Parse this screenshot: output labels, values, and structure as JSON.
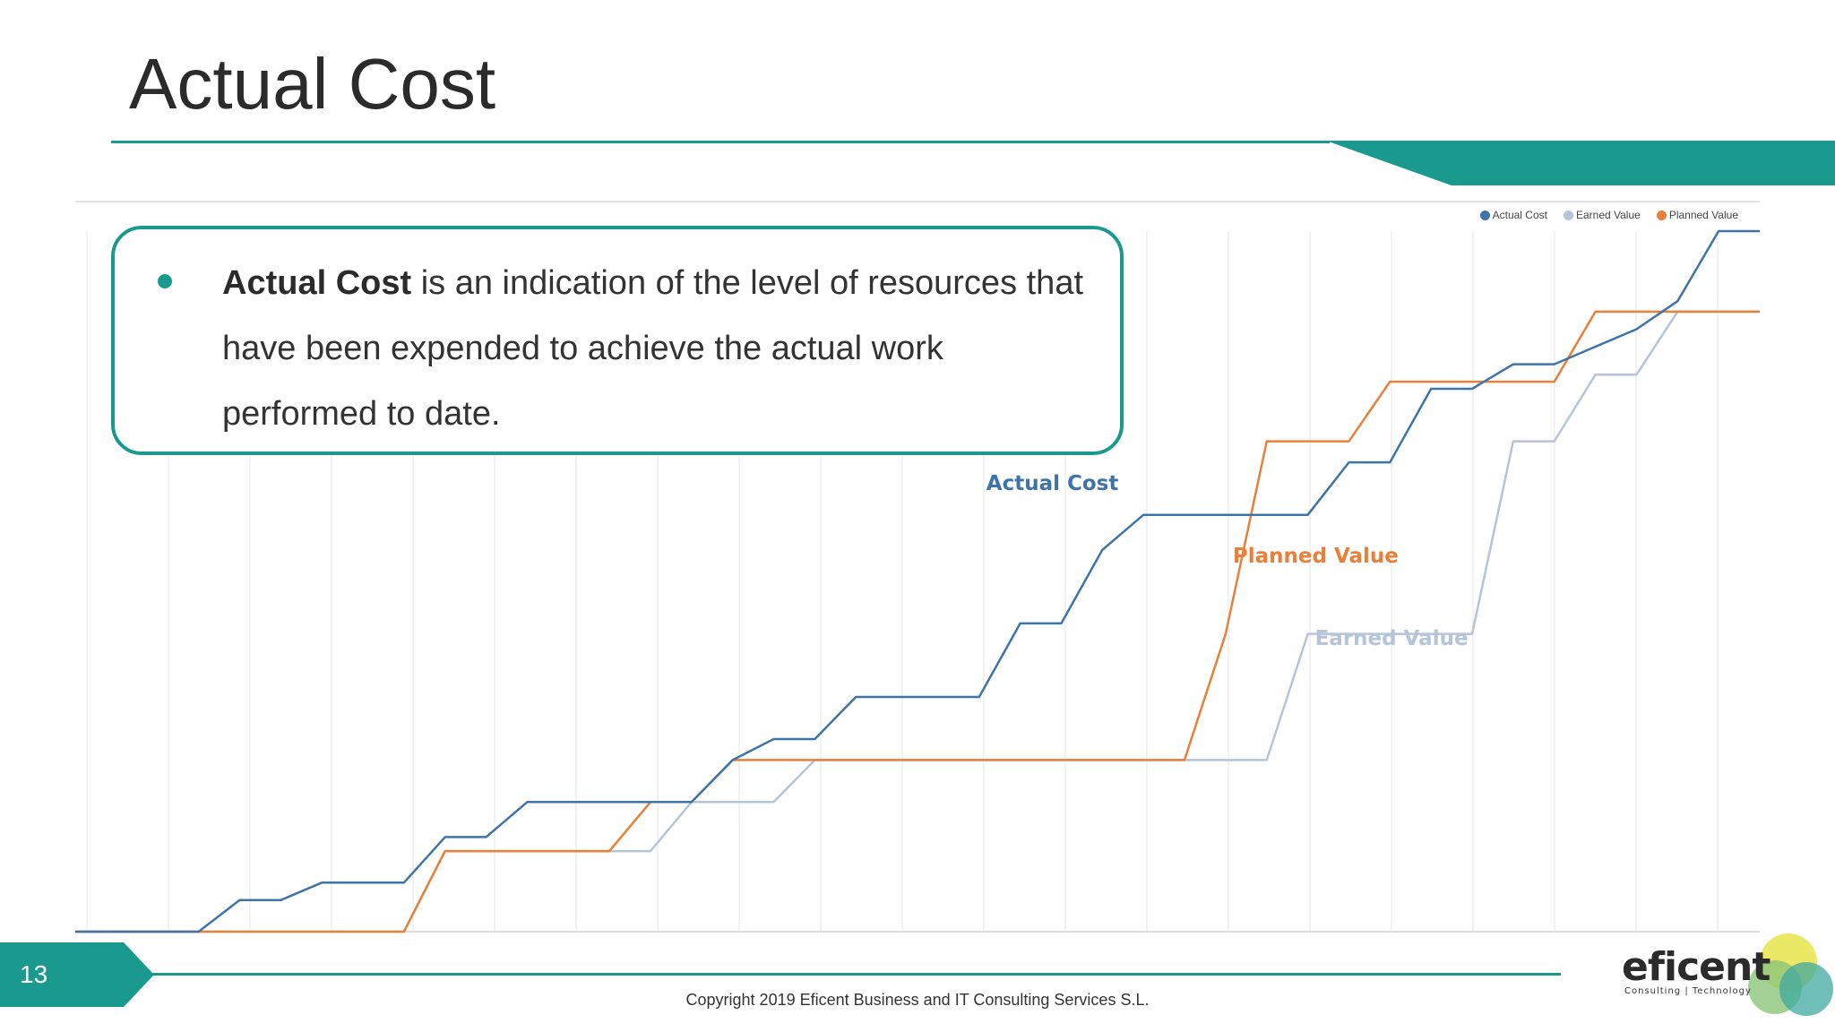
{
  "slide": {
    "title": "Actual Cost",
    "page_number": "13",
    "copyright": "Copyright 2019 Eficent Business and IT Consulting Services S.L."
  },
  "callout": {
    "bold_term": "Actual Cost",
    "text": " is an indication of the level of resources that have been expended to achieve the actual work performed to date."
  },
  "logo": {
    "name": "eficent",
    "tagline": "Consulting | Technology"
  },
  "colors": {
    "accent": "#1a9a8f",
    "actual_cost": "#3e74a8",
    "planned_value": "#e8803a",
    "earned_value": "#b5c4d8"
  },
  "chart_data": {
    "type": "line",
    "title": "",
    "xlabel": "",
    "ylabel": "",
    "grid": true,
    "legend_position": "top-right",
    "x": [
      0,
      1,
      2,
      3,
      4,
      5,
      6,
      7,
      8,
      9,
      10,
      11,
      12,
      13,
      14,
      15,
      16,
      17,
      18,
      19,
      20,
      21,
      22,
      23,
      24,
      25,
      26,
      27,
      28,
      29,
      30,
      31,
      32,
      33,
      34,
      35,
      36,
      37,
      38,
      39,
      40,
      41
    ],
    "ylim": [
      0,
      100
    ],
    "series": [
      {
        "name": "Actual Cost",
        "color": "#3e74a8",
        "label": "Actual Cost",
        "values": [
          0,
          0,
          0,
          0,
          4.5,
          4.5,
          7,
          7,
          7,
          13.5,
          13.5,
          18.5,
          18.5,
          18.5,
          18.5,
          18.5,
          24.5,
          27.5,
          27.5,
          33.5,
          33.5,
          33.5,
          33.5,
          44,
          44,
          54.5,
          59.5,
          59.5,
          59.5,
          59.5,
          59.5,
          67,
          67,
          77.5,
          77.5,
          81,
          81,
          83.5,
          86,
          90,
          100,
          100
        ]
      },
      {
        "name": "Planned Value",
        "color": "#e8803a",
        "label": "Planned Value",
        "values": [
          0,
          0,
          0,
          0,
          0,
          0,
          0,
          0,
          0,
          11.5,
          11.5,
          11.5,
          11.5,
          11.5,
          18.5,
          18.5,
          24.5,
          24.5,
          24.5,
          24.5,
          24.5,
          24.5,
          24.5,
          24.5,
          24.5,
          24.5,
          24.5,
          24.5,
          42.5,
          70,
          70,
          70,
          78.5,
          78.5,
          78.5,
          78.5,
          78.5,
          88.5,
          88.5,
          88.5,
          88.5,
          88.5
        ]
      },
      {
        "name": "Earned Value",
        "color": "#b5c4d8",
        "label": "Earned Value",
        "values": [
          0,
          0,
          0,
          0,
          0,
          0,
          0,
          0,
          0,
          11.5,
          11.5,
          11.5,
          11.5,
          11.5,
          11.5,
          18.5,
          18.5,
          18.5,
          24.5,
          24.5,
          24.5,
          24.5,
          24.5,
          24.5,
          24.5,
          24.5,
          24.5,
          24.5,
          24.5,
          24.5,
          42.5,
          42.5,
          42.5,
          42.5,
          42.5,
          70,
          70,
          79.5,
          79.5,
          88.5,
          88.5,
          88.5
        ]
      }
    ],
    "legend": [
      "Actual Cost",
      "Earned Value",
      "Planned Value"
    ]
  }
}
